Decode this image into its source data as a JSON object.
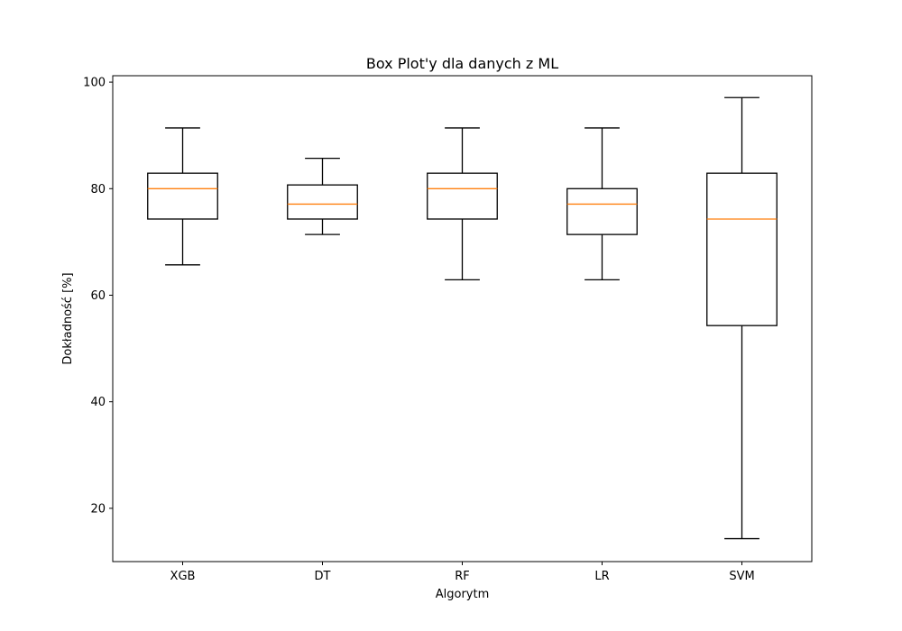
{
  "chart_data": {
    "type": "box",
    "title": "Box Plot'y dla danych z ML",
    "xlabel": "Algorytm",
    "ylabel": "Dokładność [%]",
    "ylim": [
      10,
      101.2
    ],
    "yticks": [
      20,
      40,
      60,
      80,
      100
    ],
    "grid": false,
    "colors": {
      "box": "#000000",
      "median": "#ff7f0e"
    },
    "categories": [
      "XGB",
      "DT",
      "RF",
      "LR",
      "SVM"
    ],
    "boxes": [
      {
        "name": "XGB",
        "whisker_low": 65.7,
        "q1": 74.3,
        "median": 80.0,
        "q3": 82.9,
        "whisker_high": 91.4
      },
      {
        "name": "DT",
        "whisker_low": 71.4,
        "q1": 74.3,
        "median": 77.1,
        "q3": 80.7,
        "whisker_high": 85.7
      },
      {
        "name": "RF",
        "whisker_low": 62.9,
        "q1": 74.3,
        "median": 80.0,
        "q3": 82.9,
        "whisker_high": 91.4
      },
      {
        "name": "LR",
        "whisker_low": 62.9,
        "q1": 71.4,
        "median": 77.1,
        "q3": 80.0,
        "whisker_high": 91.4
      },
      {
        "name": "SVM",
        "whisker_low": 14.3,
        "q1": 54.3,
        "median": 74.3,
        "q3": 82.9,
        "whisker_high": 97.1
      }
    ]
  }
}
